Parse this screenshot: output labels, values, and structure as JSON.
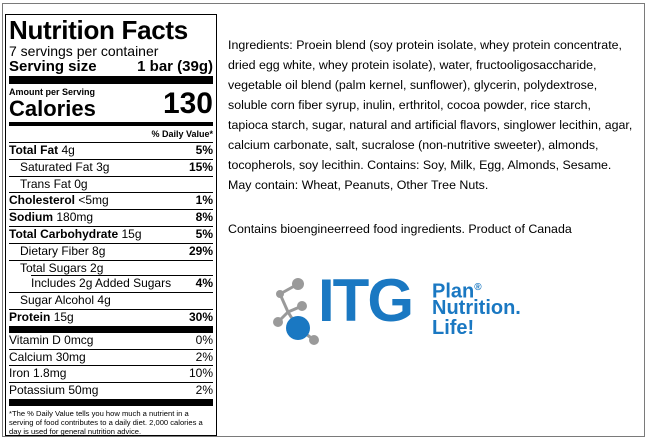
{
  "nutrition": {
    "title": "Nutrition Facts",
    "servings": "7 servings per container",
    "serving_size_label": "Serving size",
    "serving_size_value": "1 bar (39g)",
    "amount_per_serving": "Amount per Serving",
    "calories_label": "Calories",
    "calories_value": "130",
    "dv_header": "% Daily Value*",
    "rows": [
      {
        "label": "Total Fat",
        "amount": "4g",
        "dv": "5%"
      },
      {
        "label": "Saturated Fat",
        "amount": "3g",
        "dv": "15%"
      },
      {
        "label": "Trans Fat",
        "amount": "0g",
        "dv": ""
      },
      {
        "label": "Cholesterol",
        "amount": "<5mg",
        "dv": "1%"
      },
      {
        "label": "Sodium",
        "amount": "180mg",
        "dv": "8%"
      },
      {
        "label": "Total Carbohydrate",
        "amount": "15g",
        "dv": "5%"
      },
      {
        "label": "Dietary Fiber",
        "amount": "8g",
        "dv": "29%"
      },
      {
        "label": "Total Sugars",
        "amount": "2g",
        "dv": ""
      },
      {
        "label": "Includes 2g Added Sugars",
        "amount": "",
        "dv": "4%"
      },
      {
        "label": "Sugar Alcohol",
        "amount": "4g",
        "dv": ""
      },
      {
        "label": "Protein",
        "amount": "15g",
        "dv": "30%"
      },
      {
        "label": "Vitamin D",
        "amount": "0mcg",
        "dv": "0%"
      },
      {
        "label": "Calcium",
        "amount": "30mg",
        "dv": "2%"
      },
      {
        "label": "Iron",
        "amount": "1.8mg",
        "dv": "10%"
      },
      {
        "label": "Potassium",
        "amount": "50mg",
        "dv": "2%"
      }
    ],
    "footnote": "*The % Daily Value tells you how much a nutrient in a serving of food contributes to a daily diet. 2,000 calories a day is used for general nutrition advice."
  },
  "ingredients_text": "Ingredients: Proein blend (soy protein isolate, whey protein concentrate, dried egg white, whey protein isolate), water, fructooligosaccharide, vegetable oil blend (palm kernel, sunflower), glycerin, polydextrose, soluble corn fiber syrup, inulin, erthritol, cocoa powder, rice starch, tapioca starch, sugar, natural and artificial flavors, singlower lecithin, agar, calcium carbonate, salt, sucralose (non-nutritive sweeter), almonds, tocopherols, soy lecithin.  Contains: Soy, Milk, Egg, Almonds, Sesame.  May contain: Wheat, Peanuts, Other Tree Nuts.",
  "bio_text": "Contains bioengineerreed food ingredients.  Product of Canada",
  "logo": {
    "brand": "ITG",
    "line1": "Plan",
    "registered": "®",
    "line2": "Nutrition.",
    "line3": "Life!",
    "color": "#1a78c2",
    "molecule_gray": "#9a9a9a",
    "molecule_blue": "#1a78c2"
  }
}
